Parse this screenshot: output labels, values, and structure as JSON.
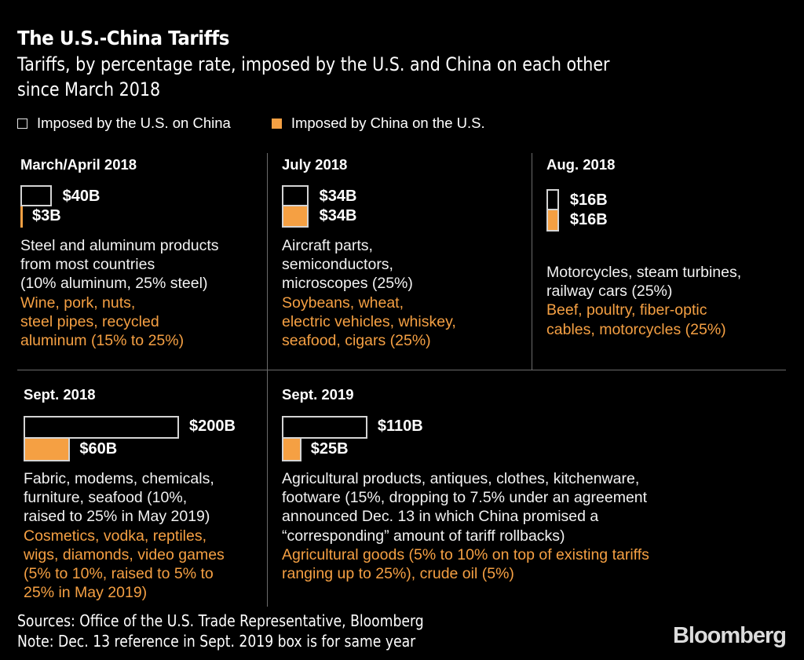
{
  "header": {
    "title": "The U.S.-China Tariffs",
    "subtitle_line1": "Tariffs, by percentage rate, imposed by the U.S. and China on each other",
    "subtitle_line2": "since March 2018"
  },
  "legend": [
    {
      "label": "Imposed by the U.S. on China",
      "color": "#000000",
      "outline": "#e6e6e6"
    },
    {
      "label": "Imposed by China on the U.S.",
      "color": "#f5a043"
    }
  ],
  "colors": {
    "china": "#f5a043",
    "us_outline": "#d4d4d4",
    "background": "#000000",
    "divider": "#6b6b6b"
  },
  "chart_data": {
    "type": "bar",
    "title": "The U.S.-China Tariffs",
    "subtitle": "Tariffs, by percentage rate, imposed by the U.S. and China on each other since March 2018",
    "unit": "billions of USD in goods",
    "categories": [
      "March/April 2018",
      "July 2018",
      "Aug. 2018",
      "Sept. 2018",
      "Sept. 2019"
    ],
    "series": [
      {
        "name": "Imposed by the U.S. on China",
        "values": [
          40,
          34,
          16,
          200,
          110
        ]
      },
      {
        "name": "Imposed by China on the U.S.",
        "values": [
          3,
          34,
          16,
          60,
          25
        ]
      }
    ],
    "legend_position": "top-left"
  },
  "panels": [
    {
      "period": "March/April 2018",
      "us_label": "$40B",
      "cn_label": "$3B",
      "us_value": 40,
      "cn_value": 3,
      "us_text": [
        "Steel and aluminum products",
        "from most countries",
        "(10% aluminum, 25% steel)"
      ],
      "cn_text": [
        "Wine, pork, nuts,",
        "steel pipes, recycled",
        "aluminum (15% to 25%)"
      ]
    },
    {
      "period": "July 2018",
      "us_label": "$34B",
      "cn_label": "$34B",
      "us_value": 34,
      "cn_value": 34,
      "us_text": [
        "Aircraft parts,",
        "semiconductors,",
        "microscopes (25%)"
      ],
      "cn_text": [
        "Soybeans, wheat,",
        "electric vehicles, whiskey,",
        "seafood, cigars (25%)"
      ]
    },
    {
      "period": "Aug. 2018",
      "us_label": "$16B",
      "cn_label": "$16B",
      "us_value": 16,
      "cn_value": 16,
      "us_text": [
        "Motorcycles, steam turbines,",
        "railway cars (25%)"
      ],
      "cn_text": [
        "Beef, poultry, fiber-optic",
        "cables, motorcycles (25%)"
      ]
    },
    {
      "period": "Sept. 2018",
      "us_label": "$200B",
      "cn_label": "$60B",
      "us_value": 200,
      "cn_value": 60,
      "us_text": [
        "Fabric, modems, chemicals,",
        "furniture, seafood (10%,",
        "raised to 25% in May 2019)"
      ],
      "cn_text": [
        "Cosmetics, vodka, reptiles,",
        "wigs, diamonds, video games",
        "(5% to 10%, raised to 5% to",
        "25% in May 2019)"
      ]
    },
    {
      "period": "Sept. 2019",
      "us_label": "$110B",
      "cn_label": "$25B",
      "us_value": 110,
      "cn_value": 25,
      "us_text": [
        "Agricultural products, antiques, clothes, kitchenware,",
        "footware (15%, dropping to 7.5% under an agreement",
        "announced Dec. 13 in which China promised a",
        "“corresponding” amount of tariff rollbacks)"
      ],
      "cn_text": [
        "Agricultural goods (5% to 10% on top of existing tariffs",
        "ranging up to 25%), crude oil (5%)"
      ]
    }
  ],
  "footer": {
    "sources": "Sources: Office of the U.S. Trade Representative, Bloomberg",
    "note": "Note: Dec. 13 reference in Sept. 2019 box is for same year",
    "logo": "Bloomberg"
  }
}
